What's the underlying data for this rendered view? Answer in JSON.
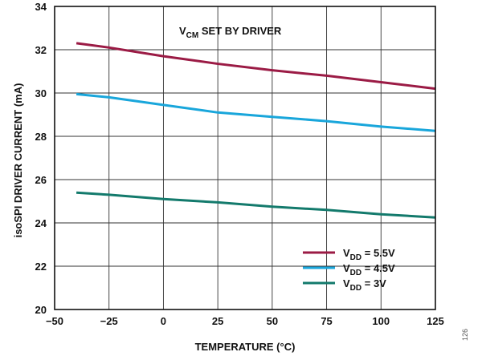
{
  "chart_data": {
    "type": "line",
    "annotation": {
      "main": "V",
      "sub": "CM",
      "tail": " SET BY DRIVER"
    },
    "xlabel": "TEMPERATURE (°C)",
    "ylabel": "isoSPI DRIVER CURRENT (mA)",
    "xlim": [
      -50,
      125
    ],
    "ylim": [
      20,
      34
    ],
    "xticks": [
      -50,
      -25,
      0,
      25,
      50,
      75,
      100,
      125
    ],
    "yticks": [
      20,
      22,
      24,
      26,
      28,
      30,
      32,
      34
    ],
    "xtick_labels": [
      "−50",
      "−25",
      "0",
      "25",
      "50",
      "75",
      "100",
      "125"
    ],
    "ytick_labels": [
      "20",
      "22",
      "24",
      "26",
      "28",
      "30",
      "32",
      "34"
    ],
    "grid": true,
    "legend_position": "bottom-right",
    "x": [
      -40,
      -25,
      0,
      25,
      50,
      75,
      100,
      125
    ],
    "series": [
      {
        "legend_main": "V",
        "legend_sub": "DD",
        "legend_tail": " = 5.5V",
        "color": "#9b1b45",
        "values": [
          32.3,
          32.1,
          31.7,
          31.35,
          31.05,
          30.8,
          30.5,
          30.2
        ]
      },
      {
        "legend_main": "V",
        "legend_sub": "DD",
        "legend_tail": " = 4.5V",
        "color": "#19a6db",
        "values": [
          29.95,
          29.8,
          29.45,
          29.1,
          28.9,
          28.7,
          28.45,
          28.25
        ]
      },
      {
        "legend_main": "V",
        "legend_sub": "DD",
        "legend_tail": " = 3V",
        "color": "#137a6c",
        "values": [
          25.4,
          25.3,
          25.1,
          24.95,
          24.75,
          24.6,
          24.4,
          24.25
        ]
      }
    ]
  },
  "figure_number": "126"
}
